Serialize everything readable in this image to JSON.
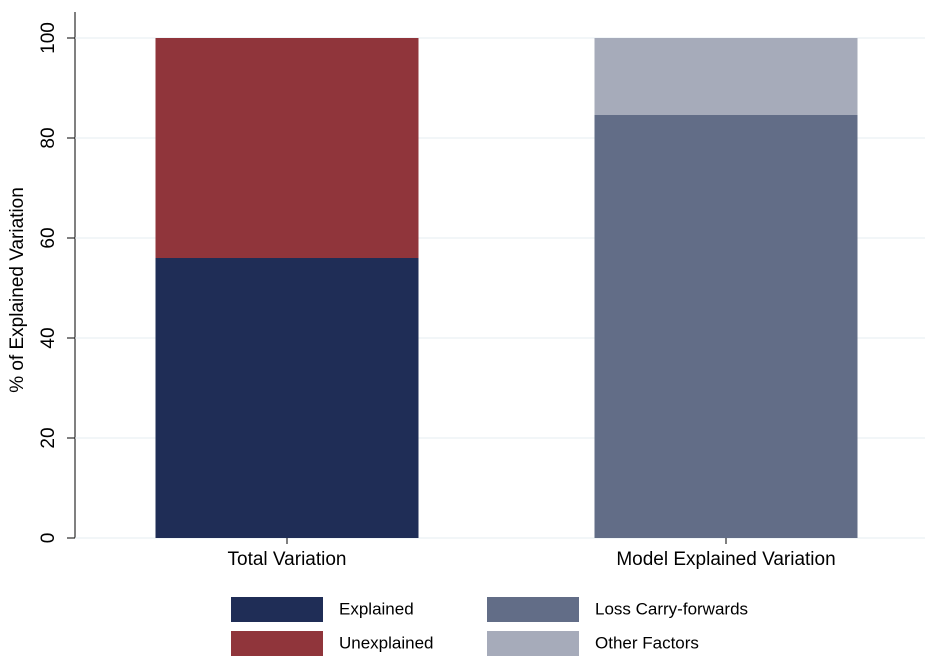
{
  "chart_data": {
    "type": "stacked_bar",
    "y_label": "% of Explained Variation",
    "categories": [
      "Total Variation",
      "Model Explained Variation"
    ],
    "series": [
      {
        "name": "Explained",
        "color": "#1f2d56",
        "values": [
          56,
          null
        ]
      },
      {
        "name": "Unexplained",
        "color": "#90353b",
        "values": [
          44,
          null
        ]
      },
      {
        "name": "Loss Carry-forwards",
        "color": "#626d87",
        "values": [
          null,
          84.6
        ]
      },
      {
        "name": "Other Factors",
        "color": "#a6abba",
        "values": [
          null,
          15.4
        ]
      }
    ],
    "ylim": [
      0,
      100
    ],
    "yticks": [
      0,
      20,
      40,
      60,
      80,
      100
    ],
    "grid": true
  }
}
